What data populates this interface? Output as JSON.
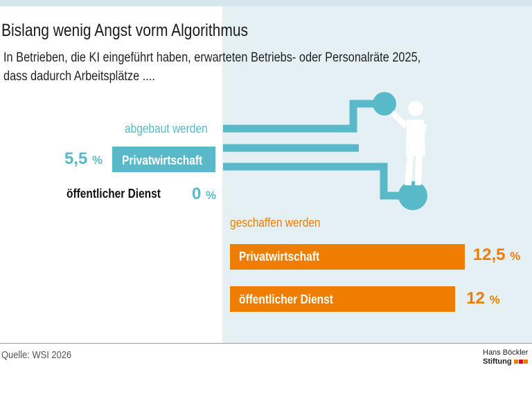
{
  "title": "Bislang wenig Angst vorm Algorithmus",
  "subtitle": "In Betrieben, die KI eingeführt haben, erwarteten Betriebs- oder Personalräte 2025, dass dadurch Arbeitsplätze ....",
  "source": "Quelle: WSI 2026",
  "logo": {
    "line1": "Hans Böckler",
    "line2": "Stiftung"
  },
  "colors": {
    "abgebaut": "#5ab9c9",
    "geschaffen": "#ef7d00",
    "panel": "#e4f0f3"
  },
  "icons": [
    "person-pushing-circle-icon"
  ],
  "chart_data": {
    "type": "bar",
    "unit": "%",
    "groups": [
      {
        "name": "abgebaut werden",
        "color": "#5ab9c9",
        "categories": [
          "Privatwirtschaft",
          "öffentlicher Dienst"
        ],
        "values": [
          5.5,
          0
        ],
        "value_labels": [
          "5,5",
          "0"
        ]
      },
      {
        "name": "geschaffen werden",
        "color": "#ef7d00",
        "categories": [
          "Privatwirtschaft",
          "öffentlicher Dienst"
        ],
        "values": [
          12.5,
          12
        ],
        "value_labels": [
          "12,5",
          "12"
        ]
      }
    ]
  }
}
